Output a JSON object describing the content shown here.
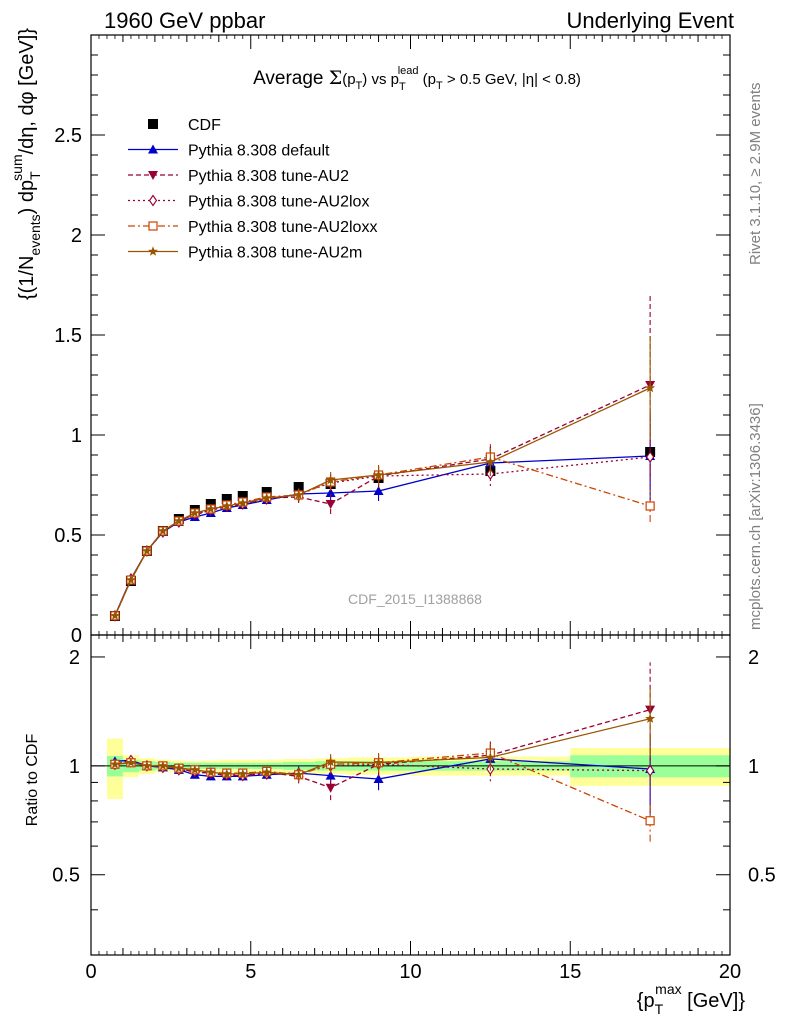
{
  "header": {
    "left": "1960 GeV ppbar",
    "right": "Underlying Event"
  },
  "side_labels": {
    "rivet": "Rivet 3.1.10, ≥ 2.9M events",
    "mcplots": "mcplots.cern.ch [arXiv:1306.3436]"
  },
  "chart_data": [
    {
      "type": "scatter",
      "title": "Average Σ(pT) vs pT^lead (pT > 0.5 GeV, |η| < 0.8)",
      "title_parts": {
        "pre": "Average ",
        "sigma": "Σ",
        "p1": "(p",
        "s1": "T",
        "p2": ") vs p",
        "s2": "T",
        "sup2": "lead",
        "post": " (p",
        "s3": "T",
        "post2": " > 0.5 GeV, |η| < 0.8)"
      },
      "ylabel": "{(1/Nevents) dpT^sum/dη, dφ [GeV]}",
      "ylabel_parts": {
        "a": "{(1/N",
        "sub1": "events",
        "b": ") dp",
        "sub2": "T",
        "sup2": "sum",
        "c": "/dη, dφ [GeV]}"
      },
      "watermark": "CDF_2015_I1388868",
      "xlim": [
        0,
        20
      ],
      "ylim": [
        0,
        3.0
      ],
      "yticks": [
        "0",
        "0.5",
        "1",
        "1.5",
        "2",
        "2.5"
      ],
      "grid": false,
      "legend_position": "top-left",
      "x": [
        0.75,
        1.25,
        1.75,
        2.25,
        2.75,
        3.25,
        3.75,
        4.25,
        4.75,
        5.5,
        6.5,
        7.5,
        9.0,
        12.5,
        17.5
      ],
      "series": [
        {
          "name": "CDF",
          "color": "#000000",
          "marker": "square-filled",
          "line": "none",
          "values": [
            0.095,
            0.27,
            0.42,
            0.52,
            0.58,
            0.625,
            0.655,
            0.68,
            0.695,
            0.715,
            0.74,
            0.755,
            0.785,
            0.82,
            0.915
          ]
        },
        {
          "name": "Pythia 8.308 default",
          "color": "#0000cc",
          "marker": "triangle-up",
          "line": "solid",
          "values": [
            0.098,
            0.28,
            0.42,
            0.515,
            0.565,
            0.59,
            0.61,
            0.635,
            0.65,
            0.675,
            0.705,
            0.71,
            0.72,
            0.86,
            0.895
          ],
          "errors": [
            0,
            0,
            0,
            0,
            0,
            0.01,
            0.01,
            0.015,
            0.015,
            0.02,
            0.03,
            0.04,
            0.05,
            0.08,
            0.22
          ]
        },
        {
          "name": "Pythia 8.308 tune-AU2",
          "color": "#990033",
          "marker": "triangle-down",
          "line": "dashed",
          "values": [
            0.096,
            0.275,
            0.42,
            0.52,
            0.57,
            0.6,
            0.625,
            0.64,
            0.655,
            0.685,
            0.69,
            0.655,
            0.795,
            0.88,
            1.25
          ],
          "errors": [
            0,
            0,
            0,
            0,
            0,
            0.01,
            0.01,
            0.015,
            0.015,
            0.02,
            0.03,
            0.05,
            0.06,
            0.08,
            0.46
          ]
        },
        {
          "name": "Pythia 8.308 tune-AU2lox",
          "color": "#990033",
          "marker": "diamond-open",
          "line": "dotted",
          "values": [
            0.096,
            0.28,
            0.42,
            0.515,
            0.565,
            0.605,
            0.625,
            0.645,
            0.655,
            0.68,
            0.705,
            0.76,
            0.795,
            0.805,
            0.89
          ],
          "errors": [
            0,
            0,
            0,
            0,
            0,
            0.01,
            0.01,
            0.015,
            0.015,
            0.02,
            0.03,
            0.04,
            0.05,
            0.06,
            0.22
          ]
        },
        {
          "name": "Pythia 8.308 tune-AU2loxx",
          "color": "#cc4400",
          "marker": "square-open",
          "line": "dashdot",
          "values": [
            0.096,
            0.275,
            0.42,
            0.52,
            0.57,
            0.61,
            0.63,
            0.65,
            0.665,
            0.69,
            0.7,
            0.765,
            0.8,
            0.89,
            0.645
          ],
          "errors": [
            0,
            0,
            0,
            0,
            0,
            0.01,
            0.01,
            0.015,
            0.015,
            0.02,
            0.03,
            0.04,
            0.05,
            0.07,
            0.08
          ]
        },
        {
          "name": "Pythia 8.308 tune-AU2m",
          "color": "#995500",
          "marker": "star",
          "line": "solid",
          "values": [
            0.096,
            0.275,
            0.42,
            0.52,
            0.57,
            0.61,
            0.63,
            0.645,
            0.66,
            0.685,
            0.7,
            0.775,
            0.8,
            0.865,
            1.235
          ],
          "errors": [
            0,
            0,
            0,
            0,
            0,
            0.01,
            0.01,
            0.015,
            0.015,
            0.02,
            0.03,
            0.04,
            0.05,
            0.07,
            0.26
          ]
        }
      ]
    },
    {
      "type": "scatter",
      "ylabel": "Ratio to CDF",
      "xlabel": "{pT^max [GeV]}",
      "xlabel_parts": {
        "a": "{p",
        "sub": "T",
        "sup": "max",
        "b": " [GeV]}"
      },
      "xlim": [
        0,
        20
      ],
      "ylim": [
        0.3,
        2.3
      ],
      "yticks": [
        "0.5",
        "1",
        "2"
      ],
      "xticks": [
        "0",
        "5",
        "10",
        "15",
        "20"
      ],
      "bands": {
        "edges": [
          0.5,
          1.0,
          1.5,
          2.0,
          2.5,
          3.0,
          3.5,
          4.0,
          4.5,
          5.0,
          6.0,
          7.0,
          8.0,
          10.0,
          15.0,
          20.0
        ],
        "green_half": [
          0.065,
          0.04,
          0.03,
          0.025,
          0.02,
          0.02,
          0.02,
          0.02,
          0.02,
          0.02,
          0.025,
          0.03,
          0.03,
          0.03,
          0.07
        ],
        "yellow_half": [
          0.19,
          0.07,
          0.05,
          0.04,
          0.035,
          0.03,
          0.035,
          0.04,
          0.04,
          0.04,
          0.045,
          0.05,
          0.055,
          0.06,
          0.12
        ]
      },
      "series": [
        {
          "name": "Pythia 8.308 default",
          "values": [
            1.03,
            1.035,
            1.0,
            0.99,
            0.975,
            0.945,
            0.935,
            0.935,
            0.935,
            0.945,
            0.955,
            0.94,
            0.92,
            1.045,
            0.98
          ]
        },
        {
          "name": "Pythia 8.308 tune-AU2",
          "values": [
            1.01,
            1.02,
            1.0,
            1.0,
            0.985,
            0.96,
            0.955,
            0.94,
            0.94,
            0.96,
            0.935,
            0.87,
            1.01,
            1.07,
            1.43
          ]
        },
        {
          "name": "Pythia 8.308 tune-AU2lox",
          "values": [
            1.01,
            1.035,
            1.0,
            0.99,
            0.975,
            0.965,
            0.955,
            0.945,
            0.94,
            0.95,
            0.955,
            1.0,
            1.01,
            0.98,
            0.97
          ]
        },
        {
          "name": "Pythia 8.308 tune-AU2loxx",
          "values": [
            1.01,
            1.02,
            1.0,
            1.0,
            0.985,
            0.975,
            0.96,
            0.955,
            0.955,
            0.965,
            0.945,
            1.01,
            1.02,
            1.085,
            0.705
          ]
        },
        {
          "name": "Pythia 8.308 tune-AU2m",
          "values": [
            1.01,
            1.02,
            1.0,
            1.0,
            0.985,
            0.975,
            0.96,
            0.95,
            0.95,
            0.96,
            0.945,
            1.025,
            1.02,
            1.055,
            1.35
          ]
        }
      ]
    }
  ]
}
